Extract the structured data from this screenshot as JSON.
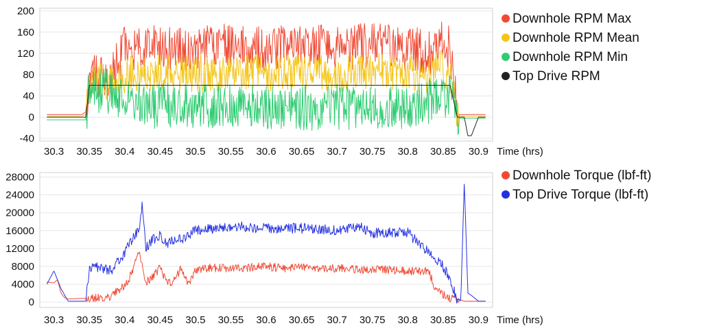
{
  "chart_data": [
    {
      "type": "line",
      "xlabel": "Time (hrs)",
      "ylabel": "",
      "xlim": [
        30.28,
        30.92
      ],
      "ylim": [
        -45,
        205
      ],
      "xticks": [
        30.3,
        30.35,
        30.4,
        30.45,
        30.5,
        30.55,
        30.6,
        30.65,
        30.7,
        30.75,
        30.8,
        30.85,
        30.9
      ],
      "xtick_labels": [
        "30.3",
        "30.35",
        "30.4",
        "30.45",
        "30.5",
        "30.55",
        "30.6",
        "30.65",
        "30.7",
        "30.75",
        "30.8",
        "30.85",
        "30.9"
      ],
      "yticks": [
        -40,
        0,
        40,
        80,
        120,
        160,
        200
      ],
      "ytick_labels": [
        "-40",
        "0",
        "40",
        "80",
        "120",
        "160",
        "200"
      ],
      "grid": "horizontal",
      "legend_position": "right",
      "series": [
        {
          "name": "Downhole RPM Max",
          "color": "#f04a35",
          "x": [
            30.29,
            30.3,
            30.31,
            30.32,
            30.33,
            30.34,
            30.345,
            30.35,
            30.36,
            30.37,
            30.38,
            30.39,
            30.4,
            30.45,
            30.5,
            30.55,
            30.6,
            30.65,
            30.7,
            30.75,
            30.8,
            30.83,
            30.85,
            30.86,
            30.87,
            30.88,
            30.89,
            30.9,
            30.91
          ],
          "y": [
            5,
            5,
            5,
            5,
            5,
            5,
            10,
            90,
            80,
            80,
            78,
            100,
            130,
            135,
            130,
            135,
            130,
            135,
            130,
            135,
            130,
            120,
            160,
            120,
            5,
            5,
            5,
            5,
            5
          ]
        },
        {
          "name": "Downhole RPM Mean",
          "color": "#f5c518",
          "x": [
            30.29,
            30.3,
            30.31,
            30.32,
            30.33,
            30.34,
            30.345,
            30.35,
            30.37,
            30.39,
            30.4,
            30.45,
            30.5,
            30.55,
            30.6,
            30.65,
            30.7,
            30.75,
            30.8,
            30.83,
            30.85,
            30.86,
            30.87,
            30.88,
            30.9,
            30.91
          ],
          "y": [
            2,
            2,
            2,
            2,
            2,
            2,
            5,
            65,
            68,
            70,
            80,
            85,
            82,
            85,
            82,
            85,
            82,
            85,
            82,
            80,
            95,
            70,
            2,
            2,
            2,
            2
          ]
        },
        {
          "name": "Downhole RPM Min",
          "color": "#2ecc71",
          "x": [
            30.29,
            30.3,
            30.31,
            30.32,
            30.33,
            30.34,
            30.345,
            30.35,
            30.37,
            30.39,
            30.4,
            30.45,
            30.5,
            30.55,
            30.6,
            30.65,
            30.7,
            30.75,
            30.8,
            30.83,
            30.85,
            30.86,
            30.87,
            30.88,
            30.9,
            30.91
          ],
          "y": [
            -5,
            -5,
            -5,
            -5,
            -5,
            -5,
            -5,
            55,
            50,
            40,
            25,
            20,
            22,
            18,
            20,
            18,
            20,
            15,
            20,
            30,
            40,
            45,
            -2,
            -2,
            -2,
            -2
          ]
        },
        {
          "name": "Top Drive RPM",
          "color": "#222222",
          "x": [
            30.29,
            30.3,
            30.31,
            30.32,
            30.33,
            30.34,
            30.345,
            30.35,
            30.4,
            30.5,
            30.6,
            30.7,
            30.8,
            30.86,
            30.87,
            30.88,
            30.885,
            30.89,
            30.9,
            30.91
          ],
          "y": [
            0,
            0,
            0,
            0,
            0,
            0,
            0,
            60,
            60,
            60,
            60,
            60,
            60,
            60,
            0,
            0,
            -35,
            -35,
            0,
            0
          ]
        }
      ]
    },
    {
      "type": "line",
      "xlabel": "Time (hrs)",
      "ylabel": "",
      "xlim": [
        30.28,
        30.92
      ],
      "ylim": [
        -1200,
        29000
      ],
      "xticks": [
        30.3,
        30.35,
        30.4,
        30.45,
        30.5,
        30.55,
        30.6,
        30.65,
        30.7,
        30.75,
        30.8,
        30.85,
        30.9
      ],
      "xtick_labels": [
        "30.3",
        "30.35",
        "30.4",
        "30.45",
        "30.5",
        "30.55",
        "30.6",
        "30.65",
        "30.7",
        "30.75",
        "30.8",
        "30.85",
        "30.9"
      ],
      "yticks": [
        0,
        4000,
        8000,
        12000,
        16000,
        20000,
        24000,
        28000
      ],
      "ytick_labels": [
        "0",
        "4000",
        "8000",
        "12000",
        "16000",
        "20000",
        "24000",
        "28000"
      ],
      "grid": "horizontal",
      "legend_position": "right",
      "series": [
        {
          "name": "Downhole Torque (lbf-ft)",
          "color": "#f04a35",
          "x": [
            30.29,
            30.3,
            30.305,
            30.31,
            30.315,
            30.32,
            30.35,
            30.38,
            30.39,
            30.4,
            30.41,
            30.42,
            30.43,
            30.44,
            30.45,
            30.46,
            30.47,
            30.48,
            30.49,
            30.5,
            30.52,
            30.55,
            30.58,
            30.6,
            30.62,
            30.65,
            30.68,
            30.7,
            30.72,
            30.75,
            30.78,
            30.8,
            30.83,
            30.84,
            30.85,
            30.86,
            30.87,
            30.88,
            30.9,
            30.91
          ],
          "y": [
            4500,
            4300,
            5000,
            2000,
            1000,
            700,
            900,
            1200,
            2500,
            3500,
            6500,
            11000,
            4500,
            5500,
            8000,
            4000,
            5000,
            7500,
            4000,
            7300,
            7700,
            7500,
            7800,
            8000,
            7600,
            7800,
            7700,
            7500,
            7400,
            7300,
            7200,
            7000,
            6800,
            2500,
            1800,
            900,
            800,
            200,
            200,
            200
          ]
        },
        {
          "name": "Top Drive Torque (lbf-ft)",
          "color": "#2430e0",
          "x": [
            30.29,
            30.3,
            30.31,
            30.32,
            30.345,
            30.35,
            30.36,
            30.37,
            30.38,
            30.39,
            30.4,
            30.41,
            30.42,
            30.425,
            30.43,
            30.44,
            30.45,
            30.46,
            30.47,
            30.48,
            30.5,
            30.55,
            30.6,
            30.65,
            30.7,
            30.73,
            30.75,
            30.8,
            30.83,
            30.85,
            30.86,
            30.87,
            30.875,
            30.88,
            30.885,
            30.89,
            30.9,
            30.91
          ],
          "y": [
            4000,
            7000,
            3000,
            200,
            200,
            7500,
            8000,
            7500,
            7000,
            9000,
            11000,
            14000,
            16000,
            22000,
            12000,
            14000,
            15000,
            13000,
            14000,
            14000,
            16000,
            17000,
            16500,
            16500,
            16000,
            17000,
            15500,
            15500,
            11000,
            8000,
            5000,
            400,
            300,
            27000,
            2000,
            1500,
            200,
            200
          ]
        }
      ]
    }
  ]
}
